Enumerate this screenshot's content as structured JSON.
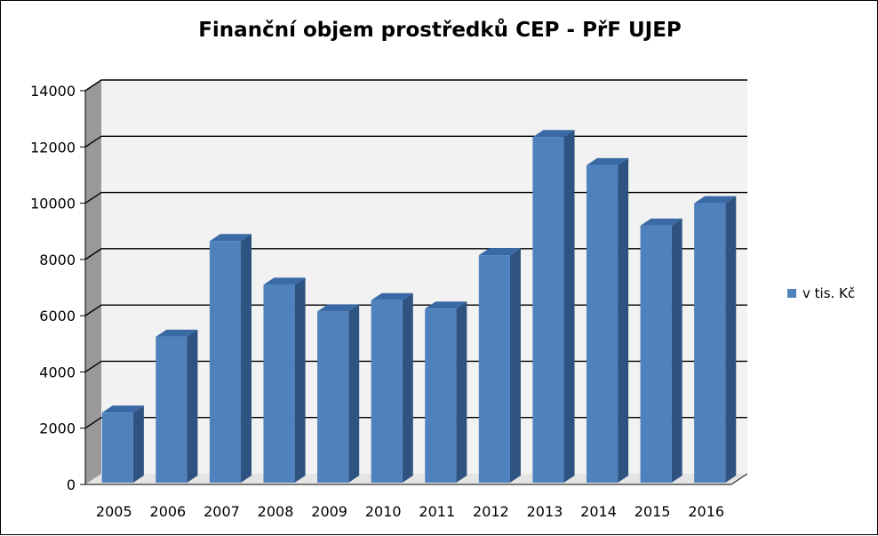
{
  "chart_data": {
    "type": "bar",
    "title": "Finanční objem prostředků CEP -  PřF UJEP",
    "categories": [
      "2005",
      "2006",
      "2007",
      "2008",
      "2009",
      "2010",
      "2011",
      "2012",
      "2013",
      "2014",
      "2015",
      "2016"
    ],
    "series": [
      {
        "name": "v tis. Kč",
        "color": "#4f81bd",
        "values": [
          2550,
          5250,
          8650,
          7100,
          6150,
          6550,
          6250,
          8150,
          12350,
          11350,
          9200,
          10000
        ]
      }
    ],
    "y_ticks": [
      "0",
      "2000",
      "4000",
      "6000",
      "8000",
      "10000",
      "12000",
      "14000"
    ],
    "ylim": [
      0,
      14000
    ],
    "grid": true,
    "legend_position": "right",
    "xlabel": "",
    "ylabel": ""
  }
}
